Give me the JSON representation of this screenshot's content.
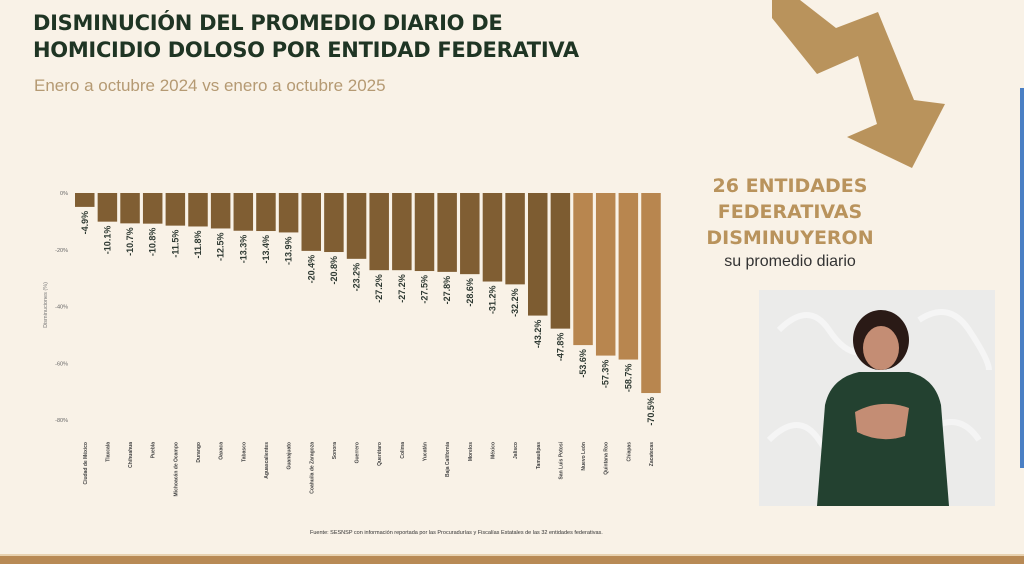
{
  "header": {
    "title_line1": "DISMINUCIÓN DEL PROMEDIO DIARIO DE",
    "title_line2": "HOMICIDIO DOLOSO POR ENTIDAD FEDERATIVA",
    "subtitle": "Enero a octubre 2024 vs enero a octubre 2025"
  },
  "callout": {
    "line1": "26 ENTIDADES",
    "line2": "FEDERATIVAS",
    "line3": "DISMINUYERON",
    "line4": "su promedio diario"
  },
  "footer": {
    "source": "Fuente: SESNSP con información reportada por las Procuradurías y Fiscalías Estatales de las 32 entidades federativas."
  },
  "colors": {
    "title": "#1f3524",
    "accent": "#b9935c",
    "bar_dark": "#7d5c31",
    "bar_light": "#b8864f"
  },
  "chart_data": {
    "type": "bar",
    "title": "",
    "xlabel": "",
    "ylabel": "Disminuciones (%)",
    "ylim": [
      -80,
      0
    ],
    "yticks": [
      0,
      -20,
      -40,
      -60,
      -80
    ],
    "ytick_labels": [
      "0%",
      "-20%",
      "-40%",
      "-60%",
      "-80%"
    ],
    "grid": false,
    "categories": [
      "Ciudad de México",
      "Tlaxcala",
      "Chihuahua",
      "Puebla",
      "Michoacán de Ocampo",
      "Durango",
      "Oaxaca",
      "Tabasco",
      "Aguascalientes",
      "Guanajuato",
      "Coahuila de Zaragoza",
      "Sonora",
      "Guerrero",
      "Querétaro",
      "Colima",
      "Yucatán",
      "Baja California",
      "Morelos",
      "México",
      "Jalisco",
      "Tamaulipas",
      "San Luis Potosí",
      "Nuevo León",
      "Quintana Roo",
      "Chiapas",
      "Zacatecas"
    ],
    "values": [
      -4.9,
      -10.1,
      -10.7,
      -10.8,
      -11.5,
      -11.8,
      -12.5,
      -13.3,
      -13.4,
      -13.9,
      -20.4,
      -20.8,
      -23.2,
      -27.2,
      -27.2,
      -27.5,
      -27.8,
      -28.6,
      -31.2,
      -32.2,
      -43.2,
      -47.8,
      -53.6,
      -57.3,
      -58.7,
      -70.5
    ],
    "data_labels": [
      "-4.9%",
      "-10.1%",
      "-10.7%",
      "-10.8%",
      "-11.5%",
      "-11.8%",
      "-12.5%",
      "-13.3%",
      "-13.4%",
      "-13.9%",
      "-20.4%",
      "-20.8%",
      "-23.2%",
      "-27.2%",
      "-27.2%",
      "-27.5%",
      "-27.8%",
      "-28.6%",
      "-31.2%",
      "-32.2%",
      "-43.2%",
      "-47.8%",
      "-53.6%",
      "-57.3%",
      "-58.7%",
      "-70.5%"
    ]
  }
}
